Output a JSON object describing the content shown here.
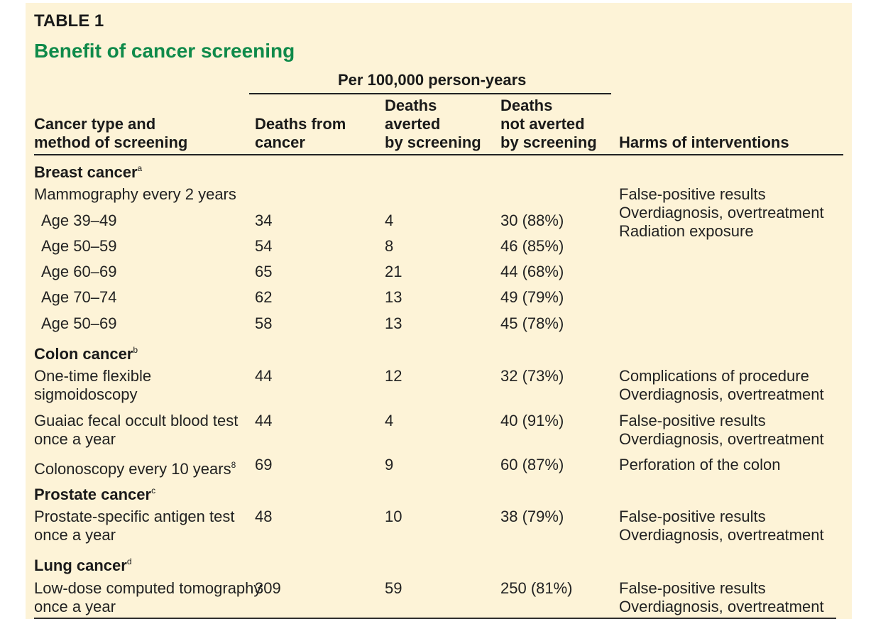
{
  "table_label": "TABLE 1",
  "title": "Benefit of cancer screening",
  "column_group": "Per 100,000 person-years",
  "headers": {
    "col_type": [
      "Cancer type and",
      "method of screening"
    ],
    "col_deaths": [
      "Deaths from",
      "cancer"
    ],
    "col_averted": [
      "Deaths",
      "averted",
      "by screening"
    ],
    "col_not_averted": [
      "Deaths",
      "not averted",
      "by screening"
    ],
    "col_harms": "Harms of interventions"
  },
  "sections": [
    {
      "name": "Breast cancer",
      "sup": "a"
    },
    {
      "name": "Colon cancer",
      "sup": "b"
    },
    {
      "name": "Prostate cancer",
      "sup": "c"
    },
    {
      "name": "Lung cancer",
      "sup": "d"
    }
  ],
  "breast": {
    "method": "Mammography every 2 years",
    "harms": [
      "False-positive results",
      "Overdiagnosis, overtreatment",
      "Radiation exposure"
    ],
    "rows": [
      {
        "age": "Age 39–49",
        "deaths": "34",
        "averted": "4",
        "not_averted": "30 (88%)"
      },
      {
        "age": "Age 50–59",
        "deaths": "54",
        "averted": "8",
        "not_averted": "46 (85%)"
      },
      {
        "age": "Age 60–69",
        "deaths": "65",
        "averted": "21",
        "not_averted": "44 (68%)"
      },
      {
        "age": "Age 70–74",
        "deaths": "62",
        "averted": "13",
        "not_averted": "49 (79%)"
      },
      {
        "age": "Age 50–69",
        "deaths": "58",
        "averted": "13",
        "not_averted": "45 (78%)"
      }
    ]
  },
  "colon": [
    {
      "method": [
        "One-time flexible",
        "sigmoidoscopy"
      ],
      "deaths": "44",
      "averted": "12",
      "not_averted": "32 (73%)",
      "harms": [
        "Complications of procedure",
        "Overdiagnosis, overtreatment"
      ]
    },
    {
      "method": [
        "Guaiac fecal occult blood test",
        "once a year"
      ],
      "deaths": "44",
      "averted": "4",
      "not_averted": "40 (91%)",
      "harms": [
        "False-positive results",
        "Overdiagnosis, overtreatment"
      ]
    },
    {
      "method": [
        "Colonoscopy every 10 years"
      ],
      "method_sup": "8",
      "deaths": "69",
      "averted": "9",
      "not_averted": "60 (87%)",
      "harms": [
        "Perforation of the colon"
      ]
    }
  ],
  "prostate": {
    "method": [
      "Prostate-specific antigen test",
      "once a year"
    ],
    "deaths": "48",
    "averted": "10",
    "not_averted": "38 (79%)",
    "harms": [
      "False-positive results",
      "Overdiagnosis, overtreatment"
    ]
  },
  "lung": {
    "method": [
      "Low-dose computed tomography",
      "once a year"
    ],
    "deaths": "309",
    "averted": "59",
    "not_averted": "250 (81%)",
    "harms": [
      "False-positive results",
      "Overdiagnosis, overtreatment"
    ]
  }
}
